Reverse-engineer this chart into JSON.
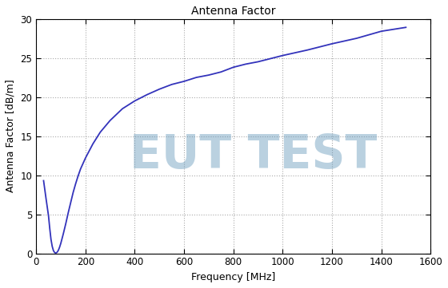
{
  "title": "Antenna Factor",
  "xlabel": "Frequency [MHz]",
  "ylabel": "Antenna Factor [dB/m]",
  "xlim": [
    0,
    1600
  ],
  "ylim": [
    0,
    30
  ],
  "xticks": [
    0,
    200,
    400,
    600,
    800,
    1000,
    1200,
    1400,
    1600
  ],
  "yticks": [
    0,
    5,
    10,
    15,
    20,
    25,
    30
  ],
  "line_color": "#3333bb",
  "line_width": 1.3,
  "watermark_text": "EUT TEST",
  "watermark_color": "#6699bb",
  "watermark_alpha": 0.45,
  "background_color": "#ffffff",
  "grid_color": "#aaaaaa",
  "freq": [
    30,
    40,
    50,
    55,
    60,
    65,
    70,
    75,
    80,
    85,
    90,
    95,
    100,
    110,
    120,
    130,
    140,
    150,
    160,
    170,
    180,
    200,
    230,
    260,
    300,
    350,
    400,
    450,
    500,
    550,
    600,
    650,
    700,
    750,
    800,
    850,
    900,
    1000,
    1100,
    1200,
    1300,
    1400,
    1500
  ],
  "af": [
    9.3,
    7.0,
    4.8,
    3.2,
    1.8,
    0.9,
    0.35,
    0.1,
    0.05,
    0.15,
    0.4,
    0.8,
    1.3,
    2.5,
    3.8,
    5.2,
    6.5,
    7.8,
    8.9,
    9.9,
    10.8,
    12.2,
    14.0,
    15.5,
    17.0,
    18.5,
    19.5,
    20.3,
    21.0,
    21.6,
    22.0,
    22.5,
    22.8,
    23.2,
    23.8,
    24.2,
    24.5,
    25.3,
    26.0,
    26.8,
    27.5,
    28.4,
    28.9
  ]
}
